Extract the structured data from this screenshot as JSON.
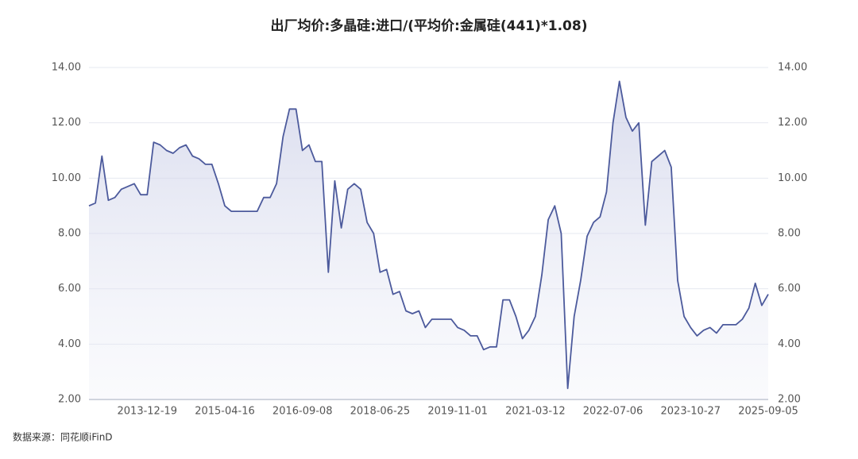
{
  "chart_data": {
    "type": "line",
    "title": "出厂均价:多晶硅:进口/(平均价:金属硅(441)*1.08)",
    "source": "数据来源：同花顺iFinD",
    "categories": [
      null,
      null,
      null,
      null,
      null,
      null,
      null,
      null,
      null,
      "2013-12-19",
      null,
      null,
      null,
      null,
      null,
      null,
      null,
      null,
      null,
      null,
      null,
      "2015-04-16",
      null,
      null,
      null,
      null,
      null,
      null,
      null,
      null,
      null,
      null,
      null,
      "2016-09-08",
      null,
      null,
      null,
      null,
      null,
      null,
      null,
      null,
      null,
      null,
      null,
      "2018-06-25",
      null,
      null,
      null,
      null,
      null,
      null,
      null,
      null,
      null,
      null,
      null,
      "2019-11-01",
      null,
      null,
      null,
      null,
      null,
      null,
      null,
      null,
      null,
      null,
      null,
      "2021-03-12",
      null,
      null,
      null,
      null,
      null,
      null,
      null,
      null,
      null,
      null,
      null,
      "2022-07-06",
      null,
      null,
      null,
      null,
      null,
      null,
      null,
      null,
      null,
      null,
      null,
      "2023-10-27",
      null,
      null,
      null,
      null,
      null,
      null,
      null,
      null,
      null,
      null,
      null,
      "2025-09-05"
    ],
    "series": [
      {
        "color": "#4c5a9c",
        "values": [
          9.0,
          9.1,
          10.8,
          9.2,
          9.3,
          9.6,
          9.7,
          9.8,
          9.4,
          9.4,
          11.3,
          11.2,
          11.0,
          10.9,
          11.1,
          11.2,
          10.8,
          10.7,
          10.5,
          10.5,
          9.8,
          9.0,
          8.8,
          8.8,
          8.8,
          8.8,
          8.8,
          9.3,
          9.3,
          9.8,
          11.5,
          12.5,
          12.5,
          11.0,
          11.2,
          10.6,
          10.6,
          6.6,
          9.9,
          8.2,
          9.6,
          9.8,
          9.6,
          8.4,
          8.0,
          6.6,
          6.7,
          5.8,
          5.9,
          5.2,
          5.1,
          5.2,
          4.6,
          4.9,
          4.9,
          4.9,
          4.9,
          4.6,
          4.5,
          4.3,
          4.3,
          3.8,
          3.9,
          3.9,
          5.6,
          5.6,
          5.0,
          4.2,
          4.5,
          5.0,
          6.5,
          8.5,
          9.0,
          8.0,
          2.4,
          5.0,
          6.3,
          7.9,
          8.4,
          8.6,
          9.5,
          12.0,
          13.5,
          12.2,
          11.7,
          12.0,
          8.3,
          10.6,
          10.8,
          11.0,
          10.4,
          6.3,
          5.0,
          4.6,
          4.3,
          4.5,
          4.6,
          4.4,
          4.7,
          4.7,
          4.7,
          4.9,
          5.3,
          6.2,
          5.4,
          5.8
        ]
      }
    ],
    "ylim": [
      2,
      14
    ],
    "yticks": [
      {
        "value": 2,
        "label": "2.00"
      },
      {
        "value": 4,
        "label": "4.00"
      },
      {
        "value": 6,
        "label": "6.00"
      },
      {
        "value": 8,
        "label": "8.00"
      },
      {
        "value": 10,
        "label": "10.00"
      },
      {
        "value": 12,
        "label": "12.00"
      },
      {
        "value": 14,
        "label": "14.00"
      }
    ],
    "y2lim": [
      2,
      14
    ],
    "y2ticks": [
      {
        "value": 2,
        "label": "2.00"
      },
      {
        "value": 4,
        "label": "4.00"
      },
      {
        "value": 6,
        "label": "6.00"
      },
      {
        "value": 8,
        "label": "8.00"
      },
      {
        "value": 10,
        "label": "10.00"
      },
      {
        "value": 12,
        "label": "12.00"
      },
      {
        "value": 14,
        "label": "14.00"
      }
    ],
    "grid": true
  }
}
